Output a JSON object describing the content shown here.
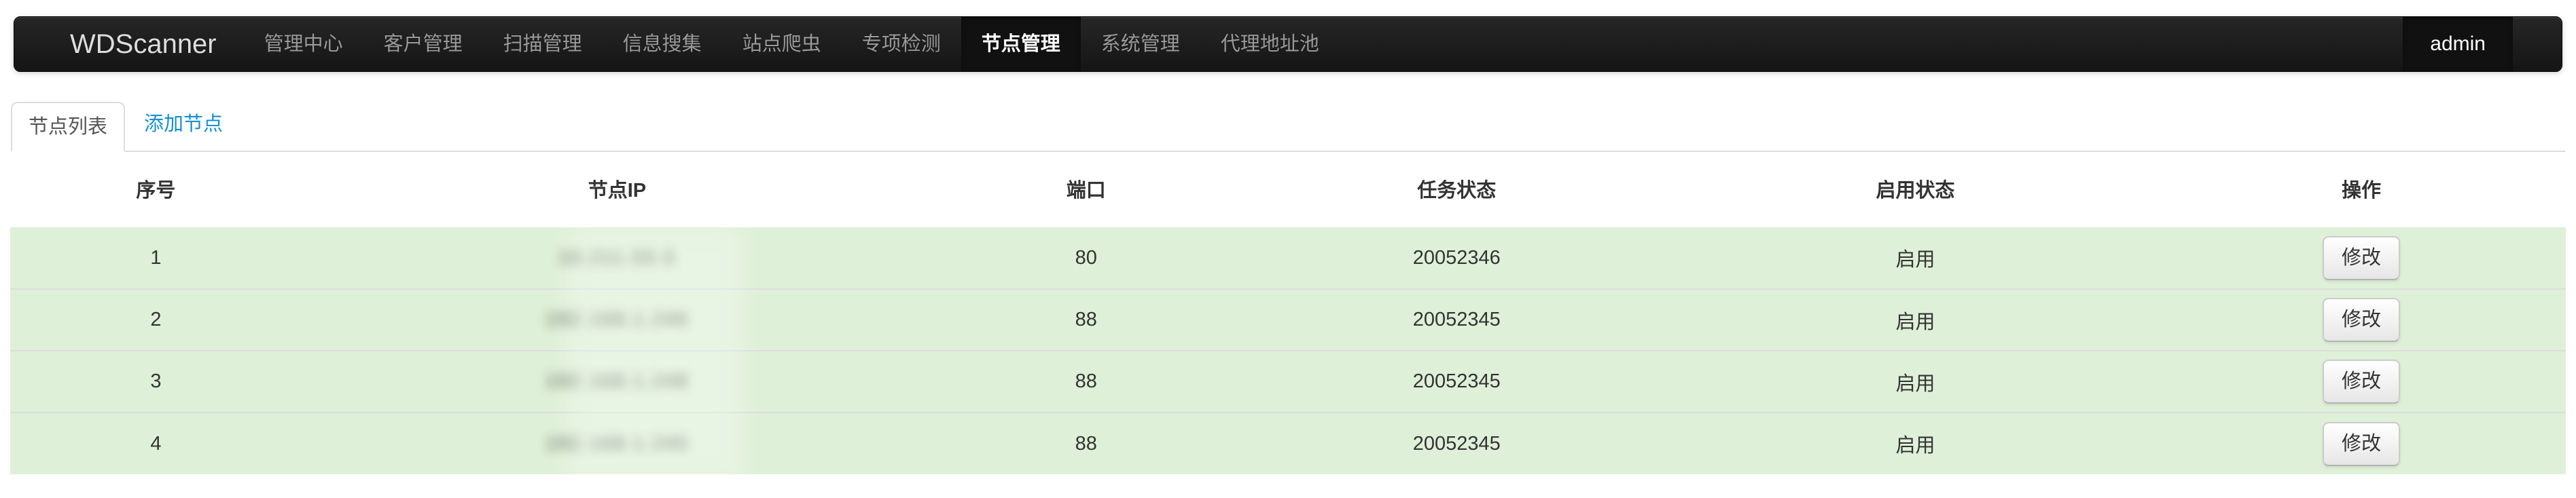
{
  "navbar": {
    "brand": "WDScanner",
    "items": [
      {
        "label": "管理中心"
      },
      {
        "label": "客户管理"
      },
      {
        "label": "扫描管理"
      },
      {
        "label": "信息搜集"
      },
      {
        "label": "站点爬虫"
      },
      {
        "label": "专项检测"
      },
      {
        "label": "节点管理",
        "active": true
      },
      {
        "label": "系统管理"
      },
      {
        "label": "代理地址池"
      }
    ],
    "user": "admin"
  },
  "tabs": {
    "node_list": "节点列表",
    "add_node": "添加节点"
  },
  "table": {
    "headers": [
      "序号",
      "节点IP",
      "端口",
      "任务状态",
      "启用状态",
      "操作"
    ],
    "rows": [
      {
        "index": "1",
        "ip": "10.211.55.5",
        "port": "80",
        "task_status": "20052346",
        "enable_status": "启用",
        "action": "修改"
      },
      {
        "index": "2",
        "ip": "192.168.1.246",
        "port": "88",
        "task_status": "20052345",
        "enable_status": "启用",
        "action": "修改"
      },
      {
        "index": "3",
        "ip": "192.168.1.248",
        "port": "88",
        "task_status": "20052345",
        "enable_status": "启用",
        "action": "修改"
      },
      {
        "index": "4",
        "ip": "192.168.1.245",
        "port": "88",
        "task_status": "20052345",
        "enable_status": "启用",
        "action": "修改"
      }
    ],
    "note": "IP column blurred (redacted) in screenshot"
  },
  "colors": {
    "navbar_top": "#262626",
    "navbar_bottom": "#151515",
    "navbar_active_bg": "#111111",
    "nav_link": "#999999",
    "link_blue": "#1390d2",
    "row_green": "#dff0d8",
    "text": "#333333",
    "tab_border": "#dddddd"
  }
}
